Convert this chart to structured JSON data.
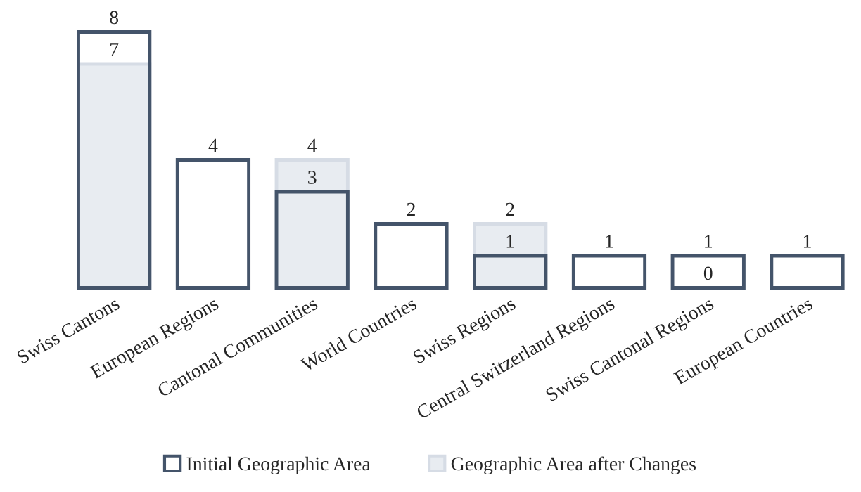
{
  "chart_data": {
    "type": "bar",
    "categories": [
      "Swiss Cantons",
      "European Regions",
      "Cantonal Communities",
      "World Countries",
      "Swiss Regions",
      "Central Switzerland Regions",
      "Swiss Cantonal Regions",
      "European Countries"
    ],
    "series": [
      {
        "name": "Initial Geographic Area",
        "color": "#44546a",
        "values": [
          8,
          4,
          3,
          2,
          1,
          1,
          1,
          1
        ]
      },
      {
        "name": "Geographic Area after Changes",
        "color": "#d6dce5",
        "values": [
          7,
          null,
          4,
          null,
          2,
          null,
          0,
          null
        ]
      }
    ],
    "data_labels": true,
    "legend": "bottom",
    "grid": false
  }
}
